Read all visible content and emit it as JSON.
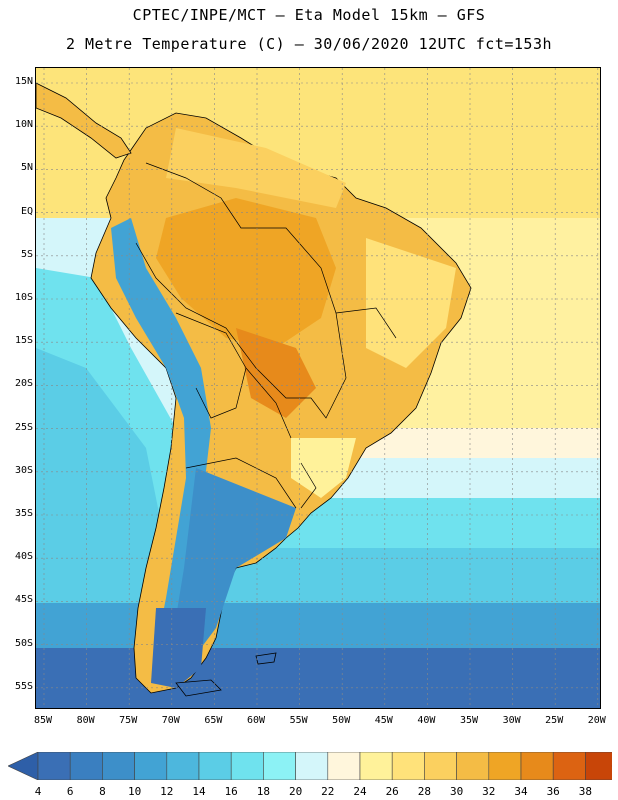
{
  "header": {
    "title_line1": "CPTEC/INPE/MCT –  Eta Model 15km – GFS",
    "title_line2": "2 Metre Temperature (C) – 30/06/2020 12UTC fct=153h"
  },
  "map": {
    "lat_labels": [
      "15N",
      "10N",
      "5N",
      "EQ",
      "5S",
      "10S",
      "15S",
      "20S",
      "25S",
      "30S",
      "35S",
      "40S",
      "45S",
      "50S",
      "55S"
    ],
    "lon_labels": [
      "85W",
      "80W",
      "75W",
      "70W",
      "65W",
      "60W",
      "55W",
      "50W",
      "45W",
      "40W",
      "35W",
      "30W",
      "25W",
      "20W"
    ],
    "lon_range": [
      -85,
      -20
    ],
    "lat_range": [
      -58,
      17
    ]
  },
  "colorbar": {
    "labels": [
      "4",
      "6",
      "8",
      "10",
      "12",
      "14",
      "16",
      "18",
      "20",
      "22",
      "24",
      "26",
      "28",
      "30",
      "32",
      "34",
      "36",
      "38"
    ],
    "colors": [
      "#3a6fb5",
      "#3a7fc0",
      "#3d8fc9",
      "#42a3d4",
      "#4db7dd",
      "#5bcde6",
      "#6fe2ee",
      "#8cf2f5",
      "#d4f6fa",
      "#fff6dc",
      "#fff29a",
      "#ffe27a",
      "#fbd05f",
      "#f4bc45",
      "#efa525",
      "#e78a1b",
      "#dc6312",
      "#c84508"
    ],
    "left_arrow_color": "#2e5fa8",
    "right_arrow_color": "#b53a08"
  }
}
